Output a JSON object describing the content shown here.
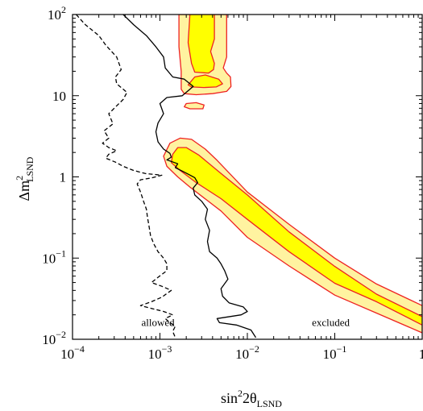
{
  "chart_data": {
    "type": "contour",
    "xlabel": {
      "base": "sin",
      "sup": "2",
      "mid": "2θ",
      "sub": "LSND"
    },
    "ylabel": {
      "base": "Δm",
      "sup": "2",
      "sub": "LSND"
    },
    "xscale": "log",
    "yscale": "log",
    "xlim": [
      0.0001,
      1
    ],
    "ylim": [
      0.01,
      100
    ],
    "x_ticks": [
      {
        "value": 0.0001,
        "base": "10",
        "exp": "−4"
      },
      {
        "value": 0.001,
        "base": "10",
        "exp": "−3"
      },
      {
        "value": 0.01,
        "base": "10",
        "exp": "−2"
      },
      {
        "value": 0.1,
        "base": "10",
        "exp": "−1"
      },
      {
        "value": 1,
        "base": "1",
        "exp": ""
      }
    ],
    "y_ticks": [
      {
        "value": 0.01,
        "base": "10",
        "exp": "−2"
      },
      {
        "value": 0.1,
        "base": "10",
        "exp": "−1"
      },
      {
        "value": 1,
        "base": "1",
        "exp": ""
      },
      {
        "value": 10,
        "base": "10",
        "exp": ""
      },
      {
        "value": 100,
        "base": "10",
        "exp": "2"
      }
    ],
    "annotations": [
      {
        "text": "allowed",
        "x": 0.00095,
        "y": 0.0145
      },
      {
        "text": "excluded",
        "x": 0.09,
        "y": 0.0145
      }
    ],
    "colors": {
      "outer_fill": "#fff3a0",
      "inner_fill": "#ffff00",
      "contour_line": "#ee2222",
      "curve": "#000000"
    },
    "regions": [
      {
        "name": "outer",
        "polygons": [
          [
            [
              0.00165,
              100
            ],
            [
              0.0058,
              100
            ],
            [
              0.0058,
              30
            ],
            [
              0.0053,
              22
            ],
            [
              0.0058,
              19
            ],
            [
              0.0064,
              17
            ],
            [
              0.0065,
              13
            ],
            [
              0.0058,
              11.3
            ],
            [
              0.004,
              10.6
            ],
            [
              0.0026,
              10.3
            ],
            [
              0.0019,
              10.6
            ],
            [
              0.00175,
              12
            ],
            [
              0.00175,
              20
            ],
            [
              0.00165,
              40
            ]
          ],
          [
            [
              0.0019,
              7.3
            ],
            [
              0.0022,
              6.9
            ],
            [
              0.0031,
              6.9
            ],
            [
              0.0032,
              7.7
            ],
            [
              0.0026,
              8.2
            ],
            [
              0.002,
              8.0
            ]
          ],
          [
            [
              0.0011,
              1.8
            ],
            [
              0.0013,
              2.6
            ],
            [
              0.0017,
              3.0
            ],
            [
              0.0023,
              2.9
            ],
            [
              0.0033,
              2.2
            ],
            [
              0.0045,
              1.6
            ],
            [
              0.01,
              0.65
            ],
            [
              0.03,
              0.26
            ],
            [
              0.1,
              0.1
            ],
            [
              0.3,
              0.048
            ],
            [
              1,
              0.026
            ],
            [
              1,
              0.012
            ],
            [
              0.3,
              0.021
            ],
            [
              0.1,
              0.035
            ],
            [
              0.03,
              0.08
            ],
            [
              0.01,
              0.18
            ],
            [
              0.005,
              0.38
            ],
            [
              0.0032,
              0.55
            ],
            [
              0.0022,
              0.75
            ],
            [
              0.0016,
              1.0
            ],
            [
              0.0012,
              1.35
            ]
          ]
        ]
      },
      {
        "name": "inner",
        "polygons": [
          [
            [
              0.0022,
              100
            ],
            [
              0.0042,
              100
            ],
            [
              0.0042,
              50
            ],
            [
              0.0038,
              35
            ],
            [
              0.0042,
              25
            ],
            [
              0.0041,
              21
            ],
            [
              0.0036,
              19
            ],
            [
              0.0025,
              19.5
            ],
            [
              0.0023,
              25
            ],
            [
              0.0021,
              45
            ]
          ],
          [
            [
              0.0021,
              13.6
            ],
            [
              0.0025,
              17
            ],
            [
              0.0033,
              18
            ],
            [
              0.0047,
              16
            ],
            [
              0.0052,
              14
            ],
            [
              0.0044,
              12.8
            ],
            [
              0.0032,
              12.6
            ],
            [
              0.0023,
              12.8
            ]
          ],
          [
            [
              0.0014,
              1.9
            ],
            [
              0.0016,
              2.3
            ],
            [
              0.002,
              2.3
            ],
            [
              0.0028,
              1.85
            ],
            [
              0.005,
              1.1
            ],
            [
              0.01,
              0.6
            ],
            [
              0.03,
              0.21
            ],
            [
              0.1,
              0.079
            ],
            [
              0.3,
              0.036
            ],
            [
              1,
              0.019
            ],
            [
              1,
              0.015
            ],
            [
              0.3,
              0.029
            ],
            [
              0.1,
              0.049
            ],
            [
              0.03,
              0.12
            ],
            [
              0.01,
              0.3
            ],
            [
              0.005,
              0.54
            ],
            [
              0.0026,
              0.85
            ],
            [
              0.0017,
              1.2
            ],
            [
              0.00135,
              1.5
            ]
          ]
        ]
      }
    ],
    "series": [
      {
        "style": "solid",
        "points": [
          [
            0.00038,
            100
          ],
          [
            0.0005,
            75
          ],
          [
            0.0007,
            55
          ],
          [
            0.0009,
            40
          ],
          [
            0.0011,
            30
          ],
          [
            0.00115,
            22
          ],
          [
            0.0014,
            17
          ],
          [
            0.0019,
            16
          ],
          [
            0.0024,
            13
          ],
          [
            0.0018,
            10
          ],
          [
            0.0012,
            9.5
          ],
          [
            0.001,
            8
          ],
          [
            0.0011,
            6
          ],
          [
            0.00095,
            4.6
          ],
          [
            0.0009,
            3.6
          ],
          [
            0.00095,
            2.7
          ],
          [
            0.0011,
            2.2
          ],
          [
            0.0013,
            1.95
          ],
          [
            0.00135,
            1.75
          ],
          [
            0.0012,
            1.62
          ],
          [
            0.0016,
            1.45
          ],
          [
            0.0015,
            1.3
          ],
          [
            0.0018,
            1.18
          ],
          [
            0.0021,
            1.08
          ],
          [
            0.0025,
            0.98
          ],
          [
            0.0027,
            0.85
          ],
          [
            0.0024,
            0.73
          ],
          [
            0.0025,
            0.6
          ],
          [
            0.003,
            0.5
          ],
          [
            0.0035,
            0.4
          ],
          [
            0.0033,
            0.3
          ],
          [
            0.0037,
            0.22
          ],
          [
            0.0035,
            0.16
          ],
          [
            0.0037,
            0.12
          ],
          [
            0.0045,
            0.1
          ],
          [
            0.005,
            0.085
          ],
          [
            0.0055,
            0.07
          ],
          [
            0.006,
            0.055
          ],
          [
            0.005,
            0.042
          ],
          [
            0.0052,
            0.034
          ],
          [
            0.0062,
            0.028
          ],
          [
            0.009,
            0.025
          ],
          [
            0.01,
            0.022
          ],
          [
            0.0085,
            0.02
          ],
          [
            0.0045,
            0.018
          ],
          [
            0.0048,
            0.016
          ],
          [
            0.0075,
            0.015
          ],
          [
            0.011,
            0.013
          ],
          [
            0.0125,
            0.0105
          ]
        ]
      },
      {
        "style": "dashed",
        "points": [
          [
            0.00011,
            100
          ],
          [
            0.00014,
            75
          ],
          [
            0.0002,
            55
          ],
          [
            0.00024,
            42
          ],
          [
            0.00028,
            35
          ],
          [
            0.00032,
            30
          ],
          [
            0.00034,
            25
          ],
          [
            0.00036,
            21
          ],
          [
            0.00031,
            17
          ],
          [
            0.00032,
            14
          ],
          [
            0.00042,
            11
          ],
          [
            0.00038,
            9
          ],
          [
            0.00032,
            7.5
          ],
          [
            0.00026,
            6
          ],
          [
            0.00029,
            4.5
          ],
          [
            0.00023,
            3.7
          ],
          [
            0.00026,
            3.0
          ],
          [
            0.00022,
            2.6
          ],
          [
            0.00026,
            2.3
          ],
          [
            0.00032,
            2.1
          ],
          [
            0.00026,
            1.9
          ],
          [
            0.00024,
            1.7
          ],
          [
            0.00031,
            1.52
          ],
          [
            0.00038,
            1.35
          ],
          [
            0.0005,
            1.2
          ],
          [
            0.00068,
            1.1
          ],
          [
            0.00105,
            1.05
          ],
          [
            0.0008,
            0.97
          ],
          [
            0.0006,
            0.92
          ],
          [
            0.00055,
            0.82
          ],
          [
            0.0006,
            0.65
          ],
          [
            0.00065,
            0.5
          ],
          [
            0.0007,
            0.4
          ],
          [
            0.00072,
            0.32
          ],
          [
            0.00075,
            0.25
          ],
          [
            0.00078,
            0.19
          ],
          [
            0.00085,
            0.15
          ],
          [
            0.00095,
            0.12
          ],
          [
            0.0011,
            0.1
          ],
          [
            0.0012,
            0.085
          ],
          [
            0.0012,
            0.07
          ],
          [
            0.00095,
            0.058
          ],
          [
            0.0008,
            0.05
          ],
          [
            0.00105,
            0.045
          ],
          [
            0.00135,
            0.04
          ],
          [
            0.00105,
            0.033
          ],
          [
            0.0008,
            0.029
          ],
          [
            0.0006,
            0.026
          ],
          [
            0.0008,
            0.024
          ],
          [
            0.0011,
            0.022
          ],
          [
            0.0014,
            0.02
          ],
          [
            0.00115,
            0.018
          ],
          [
            0.0013,
            0.016
          ],
          [
            0.0015,
            0.0145
          ],
          [
            0.0014,
            0.0125
          ],
          [
            0.0015,
            0.0105
          ]
        ]
      }
    ]
  }
}
